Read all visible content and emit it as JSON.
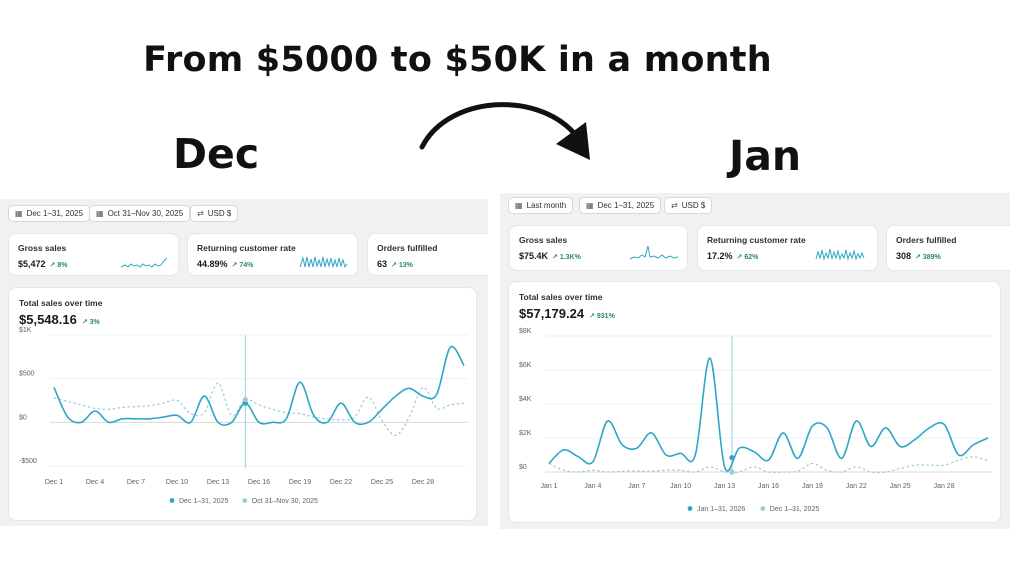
{
  "headline": "From $5000 to $50K in a month",
  "labels": {
    "dec": "Dec",
    "jan": "Jan"
  },
  "colors": {
    "primary": "#2ea7c6",
    "comparison": "#9bcbd8",
    "positive": "#2a8a5a",
    "panel": "#f1f1f1"
  },
  "dec": {
    "filters": [
      {
        "icon": "calendar-icon",
        "label": "Dec 1–31, 2025"
      },
      {
        "icon": "calendar-compare-icon",
        "label": "Oct 31–Nov 30, 2025"
      },
      {
        "icon": "currency-swap-icon",
        "label": "USD $"
      }
    ],
    "metrics": [
      {
        "title": "Gross sales",
        "value": "$5,472",
        "change": "↗ 8%"
      },
      {
        "title": "Returning customer rate",
        "value": "44.89%",
        "change": "↗ 74%"
      },
      {
        "title": "Orders fulfilled",
        "value": "63",
        "change": "↗ 13%"
      }
    ],
    "chart_title": "Total sales over time",
    "total": "$5,548.16",
    "total_change": "↗ 3%"
  },
  "jan": {
    "filters": [
      {
        "icon": "calendar-icon",
        "label": "Last month"
      },
      {
        "icon": "calendar-compare-icon",
        "label": "Dec 1–31, 2025"
      },
      {
        "icon": "currency-swap-icon",
        "label": "USD $"
      }
    ],
    "metrics": [
      {
        "title": "Gross sales",
        "value": "$75.4K",
        "change": "↗ 1.3K%"
      },
      {
        "title": "Returning customer rate",
        "value": "17.2%",
        "change": "↗ 62%"
      },
      {
        "title": "Orders fulfilled",
        "value": "308",
        "change": "↗ 389%"
      }
    ],
    "chart_title": "Total sales over time",
    "total": "$57,179.24",
    "total_change": "↗ 931%"
  },
  "chart_data": [
    {
      "type": "line",
      "title": "Total sales over time",
      "xlabel": "",
      "ylabel": "",
      "x_ticks": [
        "Dec 1",
        "Dec 4",
        "Dec 7",
        "Dec 10",
        "Dec 13",
        "Dec 16",
        "Dec 19",
        "Dec 22",
        "Dec 25",
        "Dec 28"
      ],
      "x_tick_days": [
        1,
        4,
        7,
        10,
        13,
        16,
        19,
        22,
        25,
        28
      ],
      "y_ticks": [
        "$1K",
        "$500",
        "$0",
        "-$500"
      ],
      "y_tick_values": [
        1000,
        500,
        0,
        -500
      ],
      "ylim": [
        -500,
        1000
      ],
      "highlight_day": 15,
      "grid": true,
      "legend_position": "bottom-center",
      "series": [
        {
          "name": "Dec 1–31, 2025",
          "style": "solid",
          "x": [
            1,
            2,
            3,
            4,
            5,
            6,
            7,
            8,
            9,
            10,
            11,
            12,
            13,
            14,
            15,
            16,
            17,
            18,
            19,
            20,
            21,
            22,
            23,
            24,
            25,
            26,
            27,
            28,
            29,
            30,
            31
          ],
          "values": [
            400,
            60,
            0,
            130,
            0,
            40,
            40,
            40,
            60,
            80,
            0,
            300,
            0,
            0,
            220,
            0,
            0,
            40,
            460,
            80,
            0,
            220,
            0,
            0,
            150,
            300,
            390,
            300,
            320,
            860,
            650
          ]
        },
        {
          "name": "Oct 31–Nov 30, 2025",
          "style": "dashed",
          "x": [
            1,
            2,
            3,
            4,
            5,
            6,
            7,
            8,
            9,
            10,
            11,
            12,
            13,
            14,
            15,
            16,
            17,
            18,
            19,
            20,
            21,
            22,
            23,
            24,
            25,
            26,
            27,
            28,
            29,
            30,
            31
          ],
          "values": [
            280,
            240,
            200,
            160,
            150,
            170,
            180,
            190,
            220,
            250,
            100,
            110,
            450,
            80,
            260,
            200,
            150,
            110,
            100,
            60,
            40,
            30,
            60,
            290,
            20,
            -150,
            60,
            400,
            160,
            200,
            220
          ]
        }
      ]
    },
    {
      "type": "line",
      "title": "Total sales over time",
      "xlabel": "",
      "ylabel": "",
      "x_ticks": [
        "Jan 1",
        "Jan 4",
        "Jan 7",
        "Jan 10",
        "Jan 13",
        "Jan 16",
        "Jan 19",
        "Jan 22",
        "Jan 25",
        "Jan 28"
      ],
      "x_tick_days": [
        1,
        4,
        7,
        10,
        13,
        16,
        19,
        22,
        25,
        28
      ],
      "y_ticks": [
        "$8K",
        "$6K",
        "$4K",
        "$2K",
        "$0"
      ],
      "y_tick_values": [
        8000,
        6000,
        4000,
        2000,
        0
      ],
      "ylim": [
        0,
        8000
      ],
      "highlight_day": 13.5,
      "grid": true,
      "legend_position": "bottom-center",
      "series": [
        {
          "name": "Jan 1–31, 2026",
          "style": "solid",
          "x": [
            1,
            2,
            3,
            4,
            5,
            6,
            7,
            8,
            9,
            10,
            11,
            12,
            13,
            14,
            15,
            16,
            17,
            18,
            19,
            20,
            21,
            22,
            23,
            24,
            25,
            26,
            27,
            28,
            29,
            30,
            31
          ],
          "values": [
            500,
            1300,
            900,
            600,
            3000,
            1600,
            1400,
            2300,
            1000,
            1100,
            1000,
            6700,
            300,
            1400,
            1200,
            700,
            2300,
            800,
            2700,
            2600,
            800,
            3000,
            1500,
            2600,
            1500,
            1900,
            2600,
            2800,
            1000,
            1600,
            2000
          ]
        },
        {
          "name": "Dec 1–31, 2025",
          "style": "dashed",
          "x": [
            1,
            2,
            3,
            4,
            5,
            6,
            7,
            8,
            9,
            10,
            11,
            12,
            13,
            14,
            15,
            16,
            17,
            18,
            19,
            20,
            21,
            22,
            23,
            24,
            25,
            26,
            27,
            28,
            29,
            30,
            31
          ],
          "values": [
            500,
            100,
            0,
            100,
            0,
            50,
            50,
            50,
            100,
            100,
            0,
            300,
            0,
            0,
            300,
            0,
            0,
            50,
            500,
            100,
            0,
            300,
            0,
            0,
            200,
            400,
            400,
            400,
            700,
            900,
            650
          ]
        }
      ]
    }
  ]
}
